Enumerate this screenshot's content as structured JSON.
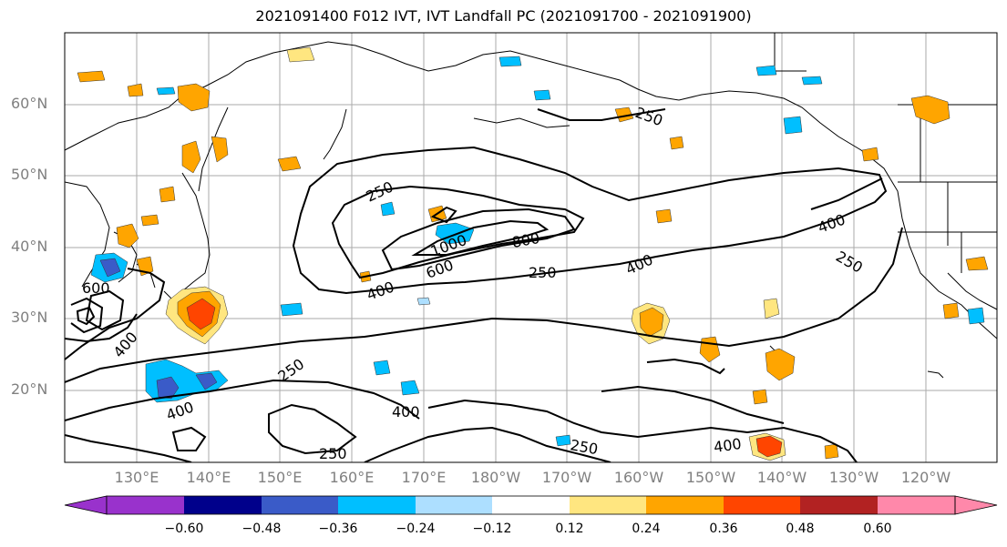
{
  "title": "2021091400 F012 IVT, IVT Landfall PC (2021091700 - 2021091900)",
  "lat_labels": [
    "60°N",
    "50°N",
    "40°N",
    "30°N",
    "20°N"
  ],
  "lon_labels": [
    "130°E",
    "140°E",
    "150°E",
    "160°E",
    "170°E",
    "180°W",
    "170°W",
    "160°W",
    "150°W",
    "140°W",
    "130°W",
    "120°W"
  ],
  "contour_labels": [
    "250",
    "250",
    "1000",
    "800",
    "600",
    "250",
    "400",
    "400",
    "400",
    "250",
    "600",
    "400",
    "250",
    "400",
    "400",
    "250",
    "250",
    "400"
  ],
  "colorbar": {
    "colors": [
      "#9932CC",
      "#00008B",
      "#3A5BC8",
      "#00BFFF",
      "#ADDFFF",
      "#FFFFFF",
      "#FFE680",
      "#FFA500",
      "#FF4500",
      "#B22222",
      "#FF88AA"
    ],
    "ticks": [
      "−0.60",
      "−0.48",
      "−0.36",
      "−0.24",
      "−0.12",
      "0.12",
      "0.24",
      "0.36",
      "0.48",
      "0.60"
    ]
  }
}
